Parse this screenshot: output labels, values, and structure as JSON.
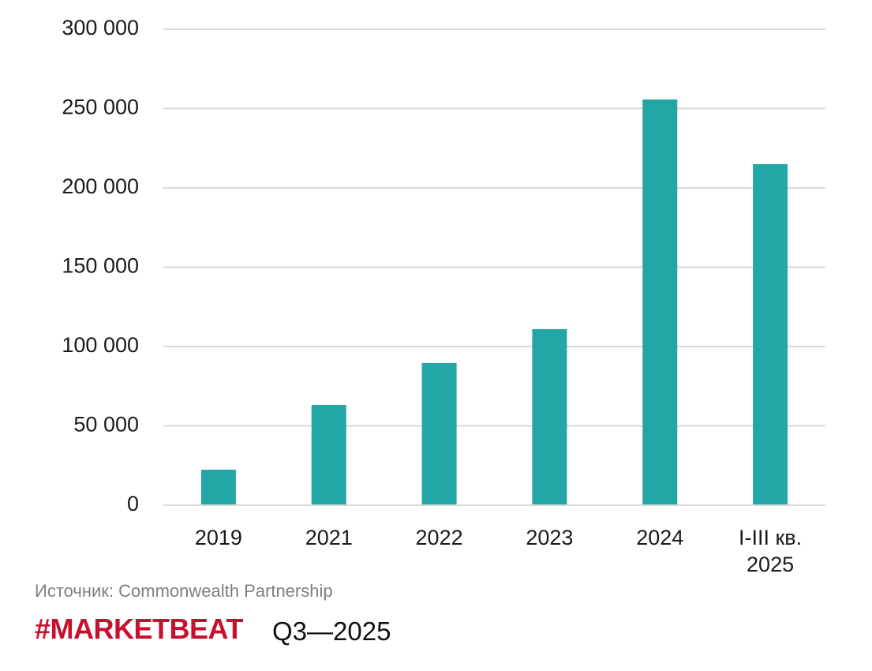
{
  "chart_data": {
    "type": "bar",
    "categories": [
      "2019",
      "2021",
      "2022",
      "2023",
      "2024",
      "I-III кв. 2025"
    ],
    "values": [
      22400,
      63200,
      89600,
      111000,
      255700,
      215000
    ],
    "color": "#22a6a6",
    "ylim": [
      0,
      300000
    ],
    "yticks": [
      0,
      {
        "value": 50000,
        "label": "50 000"
      },
      {
        "value": 100000,
        "label": "100 000"
      },
      {
        "value": 150000,
        "label": "150 000"
      },
      {
        "value": 200000,
        "label": "200 000"
      },
      {
        "value": 250000,
        "label": "250 000"
      },
      {
        "value": 300000,
        "label": "300 000"
      }
    ],
    "grid": true,
    "source": "Источник: Commonwealth Partnership",
    "brand": "#MARKETBEAT",
    "period": "Q3—2025"
  }
}
